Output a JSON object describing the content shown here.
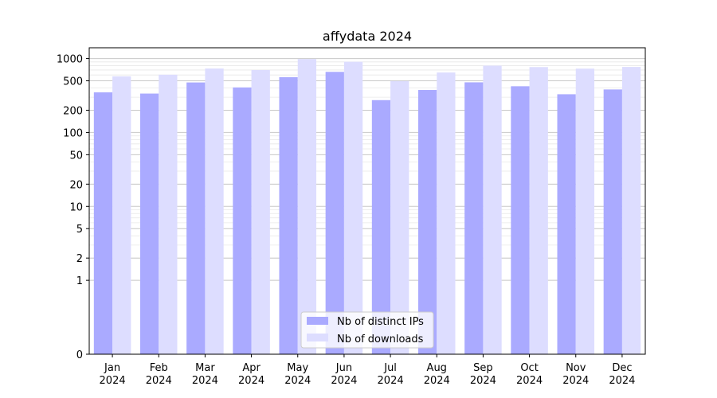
{
  "chart_data": {
    "type": "bar",
    "title": "affydata 2024",
    "categories": [
      [
        "Jan",
        "2024"
      ],
      [
        "Feb",
        "2024"
      ],
      [
        "Mar",
        "2024"
      ],
      [
        "Apr",
        "2024"
      ],
      [
        "May",
        "2024"
      ],
      [
        "Jun",
        "2024"
      ],
      [
        "Jul",
        "2024"
      ],
      [
        "Aug",
        "2024"
      ],
      [
        "Sep",
        "2024"
      ],
      [
        "Oct",
        "2024"
      ],
      [
        "Nov",
        "2024"
      ],
      [
        "Dec",
        "2024"
      ]
    ],
    "series": [
      {
        "name": "Nb of distinct IPs",
        "color": "#aaaaff",
        "values": [
          349,
          336,
          475,
          407,
          560,
          661,
          274,
          376,
          477,
          422,
          329,
          382
        ]
      },
      {
        "name": "Nb of downloads",
        "color": "#ddddff",
        "values": [
          575,
          605,
          733,
          700,
          985,
          905,
          496,
          648,
          802,
          767,
          730,
          770
        ]
      }
    ],
    "yscale": "symlog",
    "ylim": [
      0,
      1400
    ],
    "yticks": [
      0,
      1,
      2,
      5,
      10,
      20,
      50,
      100,
      200,
      500,
      1000
    ],
    "grid": true,
    "legend_position": "lower center"
  }
}
